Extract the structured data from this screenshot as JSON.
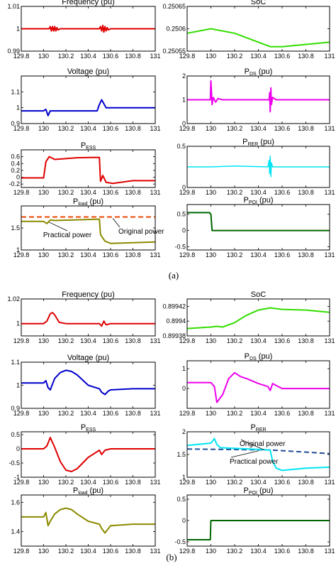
{
  "captions": {
    "a": "(a)",
    "b": "(b)"
  },
  "colors": {
    "red": "#e00000",
    "green": "#33dd00",
    "blue": "#0000cc",
    "magenta": "#ee00ee",
    "cyan": "#00e5f5",
    "olive": "#8a8a00",
    "darkgreen": "#006600",
    "orange": "#ee4400",
    "navy": "#1f4e99"
  },
  "chart_data": [
    {
      "id": "a1",
      "type": "line",
      "title": "Frequency (pu)",
      "xticks": [
        "129.8",
        "130",
        "130.2",
        "130.4",
        "130.6",
        "130.8",
        "131"
      ],
      "yticks": [
        "0.99",
        "1",
        "1.01"
      ],
      "xlim": [
        129.8,
        131
      ],
      "ylim": [
        0.99,
        1.01
      ],
      "series": [
        {
          "color": "red",
          "width": 2,
          "x": [
            129.8,
            130.0,
            130.05,
            130.06,
            130.07,
            130.08,
            130.09,
            130.1,
            130.11,
            130.12,
            130.13,
            130.15,
            130.5,
            130.51,
            130.52,
            130.53,
            130.54,
            130.55,
            130.56,
            130.57,
            130.58,
            130.6,
            131.0
          ],
          "y": [
            1,
            1,
            1,
            1.001,
            0.999,
            1.001,
            0.999,
            1.001,
            0.999,
            1.0005,
            0.9995,
            1,
            1,
            1.001,
            0.999,
            1.0015,
            0.9985,
            1.001,
            0.999,
            1.0005,
            0.9995,
            1,
            1
          ]
        }
      ]
    },
    {
      "id": "a2",
      "type": "line",
      "title": "SoC",
      "xticks": [
        "129.8",
        "130",
        "130.2",
        "130.4",
        "130.6",
        "130.8",
        "131"
      ],
      "yticks": [
        "0.25055",
        "0.2506",
        "0.25065"
      ],
      "xlim": [
        129.8,
        131
      ],
      "ylim": [
        0.25055,
        0.25065
      ],
      "series": [
        {
          "color": "green",
          "width": 2,
          "x": [
            129.8,
            130.0,
            130.2,
            130.5,
            130.6,
            131.0
          ],
          "y": [
            0.25059,
            0.2506,
            0.25059,
            0.25056,
            0.25056,
            0.25057
          ]
        }
      ]
    },
    {
      "id": "a3",
      "type": "line",
      "title": "Voltage (pu)",
      "xticks": [
        "129.8",
        "130",
        "130.2",
        "130.4",
        "130.6",
        "130.8",
        "131"
      ],
      "yticks": [
        "0.9",
        "1",
        "1.1"
      ],
      "xlim": [
        129.8,
        131
      ],
      "ylim": [
        0.9,
        1.2
      ],
      "series": [
        {
          "color": "blue",
          "width": 2,
          "x": [
            129.8,
            130.0,
            130.02,
            130.04,
            130.06,
            130.1,
            130.48,
            130.5,
            130.52,
            130.56,
            130.6,
            131.0
          ],
          "y": [
            0.98,
            0.98,
            0.99,
            0.95,
            0.98,
            0.98,
            0.98,
            1.02,
            1.05,
            1.0,
            1.0,
            1.0
          ]
        }
      ]
    },
    {
      "id": "a4",
      "type": "line",
      "title": "P",
      "title_sub": "DS",
      "title_suffix": " (pu)",
      "xticks": [
        "129.8",
        "130",
        "130.2",
        "130.4",
        "130.6",
        "130.8",
        "131"
      ],
      "yticks": [
        "0",
        "1",
        "2"
      ],
      "xlim": [
        129.8,
        131
      ],
      "ylim": [
        0,
        2
      ],
      "series": [
        {
          "color": "magenta",
          "width": 2,
          "x": [
            129.8,
            129.995,
            130.0,
            130.01,
            130.02,
            130.04,
            130.06,
            130.1,
            130.49,
            130.495,
            130.5,
            130.505,
            130.51,
            130.52,
            130.55,
            131.0
          ],
          "y": [
            1,
            1,
            1.8,
            0.8,
            1.1,
            0.9,
            1.05,
            1,
            1,
            1.3,
            0.5,
            1.5,
            0.8,
            1.1,
            1,
            1
          ]
        }
      ]
    },
    {
      "id": "a5",
      "type": "line",
      "title": "P",
      "title_sub": "ESS",
      "title_suffix": "",
      "xticks": [
        "129.8",
        "130",
        "130.2",
        "130.4",
        "130.6",
        "130.8",
        "131"
      ],
      "yticks": [
        "-0.2",
        "0",
        "0.2",
        "0.4",
        "0.6"
      ],
      "xlim": [
        129.8,
        131
      ],
      "ylim": [
        -0.3,
        0.8
      ],
      "series": [
        {
          "color": "red",
          "width": 2,
          "x": [
            129.8,
            130.0,
            130.02,
            130.05,
            130.1,
            130.3,
            130.5,
            130.51,
            130.53,
            130.56,
            130.62,
            130.8,
            131.0
          ],
          "y": [
            -0.02,
            -0.02,
            0.45,
            0.6,
            0.52,
            0.57,
            0.58,
            -0.12,
            0.05,
            -0.15,
            -0.18,
            -0.1,
            -0.1
          ]
        }
      ]
    },
    {
      "id": "a6",
      "type": "line",
      "title": "P",
      "title_sub": "RER",
      "title_suffix": " (pu)",
      "xticks": [
        "129.8",
        "130",
        "130.2",
        "130.4",
        "130.6",
        "130.8",
        "131"
      ],
      "yticks": [
        "0",
        "0.5"
      ],
      "xlim": [
        129.8,
        131
      ],
      "ylim": [
        0,
        0.5
      ],
      "series": [
        {
          "color": "cyan",
          "width": 1.5,
          "x": [
            129.8,
            130.0,
            130.2,
            130.48,
            130.49,
            130.495,
            130.5,
            130.505,
            130.51,
            130.52,
            130.6,
            131.0
          ],
          "y": [
            0.25,
            0.25,
            0.26,
            0.25,
            0.33,
            0.17,
            0.38,
            0.13,
            0.3,
            0.25,
            0.25,
            0.25
          ]
        }
      ]
    },
    {
      "id": "a7",
      "type": "line",
      "title": "P",
      "title_sub": "load",
      "title_suffix": " (pu)",
      "xticks": [
        "129.8",
        "130",
        "130.2",
        "130.4",
        "130.6",
        "130.8",
        "131"
      ],
      "yticks": [
        "1",
        "1.5"
      ],
      "xlim": [
        129.8,
        131
      ],
      "ylim": [
        1,
        2
      ],
      "series": [
        {
          "color": "orange",
          "width": 2,
          "dash": "7,4",
          "x": [
            129.8,
            131.0
          ],
          "y": [
            1.75,
            1.75
          ]
        },
        {
          "color": "olive",
          "width": 2,
          "x": [
            129.8,
            130.0,
            130.03,
            130.06,
            130.1,
            130.5,
            130.51,
            130.55,
            130.6,
            131.0
          ],
          "y": [
            1.65,
            1.65,
            1.6,
            1.68,
            1.67,
            1.7,
            1.35,
            1.2,
            1.15,
            1.18
          ]
        }
      ],
      "annotations": [
        {
          "text": "Practical power"
        },
        {
          "text": "Original power"
        }
      ]
    },
    {
      "id": "a8",
      "type": "line",
      "title": "P",
      "title_sub": "POI",
      "title_suffix": " (pu)",
      "xticks": [
        "129.8",
        "130",
        "130.2",
        "130.4",
        "130.6",
        "130.8",
        "131"
      ],
      "yticks": [
        "-0.5",
        "0",
        "0.5"
      ],
      "xlim": [
        129.8,
        131
      ],
      "ylim": [
        -0.6,
        0.8
      ],
      "series": [
        {
          "color": "darkgreen",
          "width": 2,
          "x": [
            129.8,
            129.99,
            129.995,
            130.0,
            130.01,
            131.0
          ],
          "y": [
            0.55,
            0.55,
            0.52,
            0.5,
            0,
            0
          ]
        }
      ]
    },
    {
      "id": "b1",
      "type": "line",
      "title": "Frequency (pu)",
      "xticks": [
        "129.8",
        "130",
        "130.2",
        "130.4",
        "130.6",
        "130.8",
        "131"
      ],
      "yticks": [
        "1",
        "1.02"
      ],
      "xlim": [
        129.8,
        131
      ],
      "ylim": [
        0.99,
        1.02
      ],
      "series": [
        {
          "color": "red",
          "width": 2,
          "x": [
            129.8,
            130.0,
            130.03,
            130.06,
            130.08,
            130.1,
            130.14,
            130.2,
            130.5,
            130.52,
            130.54,
            130.56,
            130.6,
            131.0
          ],
          "y": [
            1,
            1,
            1.002,
            1.008,
            1.009,
            1.007,
            1.001,
            1,
            1,
            0.998,
            1.002,
            0.999,
            1,
            1
          ]
        }
      ]
    },
    {
      "id": "b2",
      "type": "line",
      "title": "SoC",
      "xticks": [
        "129.8",
        "130",
        "130.2",
        "130.4",
        "130.6",
        "130.8",
        "131"
      ],
      "yticks": [
        "0.89938",
        "0.8994",
        "0.89942"
      ],
      "xlim": [
        129.8,
        131
      ],
      "ylim": [
        0.89938,
        0.89943
      ],
      "series": [
        {
          "color": "green",
          "width": 2,
          "x": [
            129.8,
            130.0,
            130.05,
            130.1,
            130.2,
            130.3,
            130.4,
            130.5,
            130.6,
            130.8,
            131.0
          ],
          "y": [
            0.89939,
            0.899392,
            0.899393,
            0.899392,
            0.899398,
            0.899408,
            0.899415,
            0.899418,
            0.899416,
            0.899415,
            0.899412
          ]
        }
      ]
    },
    {
      "id": "b3",
      "type": "line",
      "title": "Voltage (pu)",
      "xticks": [
        "129.8",
        "130",
        "130.2",
        "130.4",
        "130.6",
        "130.8",
        "131"
      ],
      "yticks": [
        "0.9",
        "1",
        "1.1"
      ],
      "xlim": [
        129.8,
        131
      ],
      "ylim": [
        0.9,
        1.1
      ],
      "series": [
        {
          "color": "blue",
          "width": 2,
          "x": [
            129.8,
            130.0,
            130.02,
            130.04,
            130.06,
            130.1,
            130.15,
            130.2,
            130.25,
            130.3,
            130.4,
            130.5,
            130.52,
            130.55,
            130.58,
            130.6,
            130.8,
            131.0
          ],
          "y": [
            1.01,
            1.01,
            1.02,
            0.99,
            0.98,
            1.03,
            1.055,
            1.065,
            1.06,
            1.045,
            1.0,
            0.985,
            0.97,
            0.96,
            0.975,
            0.98,
            0.985,
            0.985
          ]
        }
      ]
    },
    {
      "id": "b4",
      "type": "line",
      "title": "P",
      "title_sub": "DS",
      "title_suffix": " (pu)",
      "xticks": [
        "129.8",
        "130",
        "130.2",
        "130.4",
        "130.6",
        "130.8",
        "131"
      ],
      "yticks": [
        "0",
        "1"
      ],
      "xlim": [
        129.8,
        131
      ],
      "ylim": [
        -1,
        1.4
      ],
      "series": [
        {
          "color": "magenta",
          "width": 2,
          "x": [
            129.8,
            130.0,
            130.03,
            130.05,
            130.1,
            130.15,
            130.2,
            130.25,
            130.3,
            130.4,
            130.48,
            130.5,
            130.52,
            130.55,
            130.6,
            130.8,
            131.0
          ],
          "y": [
            0.3,
            0.3,
            0.1,
            -0.7,
            -0.3,
            0.5,
            0.8,
            0.6,
            0.5,
            0.25,
            0.1,
            -0.1,
            0.25,
            0.15,
            0.0,
            0.0,
            0.0
          ]
        }
      ]
    },
    {
      "id": "b5",
      "type": "line",
      "title": "P",
      "title_sub": "ESS",
      "title_suffix": "",
      "xticks": [
        "129.8",
        "130",
        "130.2",
        "130.4",
        "130.6",
        "130.8",
        "131"
      ],
      "yticks": [
        "-1",
        "-0.5",
        "0",
        "0.5"
      ],
      "xlim": [
        129.8,
        131
      ],
      "ylim": [
        -1,
        0.6
      ],
      "series": [
        {
          "color": "red",
          "width": 2,
          "x": [
            129.8,
            130.0,
            130.03,
            130.06,
            130.1,
            130.15,
            130.2,
            130.25,
            130.3,
            130.4,
            130.5,
            130.52,
            130.55,
            130.6,
            130.8,
            131.0
          ],
          "y": [
            0,
            0,
            0.1,
            0.4,
            0.05,
            -0.45,
            -0.75,
            -0.8,
            -0.7,
            -0.3,
            -0.05,
            -0.2,
            -0.05,
            0,
            0,
            0
          ]
        }
      ]
    },
    {
      "id": "b6",
      "type": "line",
      "title": "P",
      "title_sub": "RER",
      "title_suffix": "",
      "xticks": [
        "129.8",
        "130",
        "130.2",
        "130.4",
        "130.6",
        "130.8",
        "131"
      ],
      "yticks": [
        "1",
        "1.5",
        "2"
      ],
      "xlim": [
        129.8,
        131
      ],
      "ylim": [
        1,
        2
      ],
      "series": [
        {
          "color": "navy",
          "width": 2,
          "dash": "7,4",
          "x": [
            129.8,
            130.5,
            131.0
          ],
          "y": [
            1.62,
            1.6,
            1.52
          ]
        },
        {
          "color": "cyan",
          "width": 2,
          "x": [
            129.8,
            130.0,
            130.03,
            130.05,
            130.08,
            130.5,
            130.52,
            130.55,
            130.6,
            130.8,
            131.0
          ],
          "y": [
            1.7,
            1.75,
            1.85,
            1.72,
            1.65,
            1.6,
            1.35,
            1.2,
            1.15,
            1.2,
            1.22
          ]
        }
      ],
      "annotations": [
        {
          "text": "Original power"
        },
        {
          "text": "Practical power"
        }
      ]
    },
    {
      "id": "b7",
      "type": "line",
      "title": "P",
      "title_sub": "load",
      "title_suffix": " (pu)",
      "xticks": [
        "129.8",
        "130",
        "130.2",
        "130.4",
        "130.6",
        "130.8",
        "131"
      ],
      "yticks": [
        "1.4",
        "1.6"
      ],
      "xlim": [
        129.8,
        131
      ],
      "ylim": [
        1.3,
        1.65
      ],
      "series": [
        {
          "color": "olive",
          "width": 2,
          "x": [
            129.8,
            130.0,
            130.02,
            130.04,
            130.06,
            130.1,
            130.15,
            130.2,
            130.25,
            130.3,
            130.4,
            130.5,
            130.52,
            130.55,
            130.6,
            130.8,
            131.0
          ],
          "y": [
            1.5,
            1.5,
            1.53,
            1.44,
            1.47,
            1.52,
            1.55,
            1.56,
            1.55,
            1.52,
            1.47,
            1.45,
            1.42,
            1.39,
            1.44,
            1.45,
            1.45
          ]
        }
      ]
    },
    {
      "id": "b8",
      "type": "line",
      "title": "P",
      "title_sub": "POI",
      "title_suffix": " (pu)",
      "xticks": [
        "129.8",
        "130",
        "130.2",
        "130.4",
        "130.6",
        "130.8",
        "131"
      ],
      "yticks": [
        "-0.5",
        "0",
        "0.5"
      ],
      "xlim": [
        129.8,
        131
      ],
      "ylim": [
        -0.6,
        0.6
      ],
      "series": [
        {
          "color": "darkgreen",
          "width": 2,
          "x": [
            129.8,
            129.995,
            130.0,
            131.0
          ],
          "y": [
            -0.45,
            -0.45,
            0,
            0
          ]
        }
      ]
    }
  ]
}
